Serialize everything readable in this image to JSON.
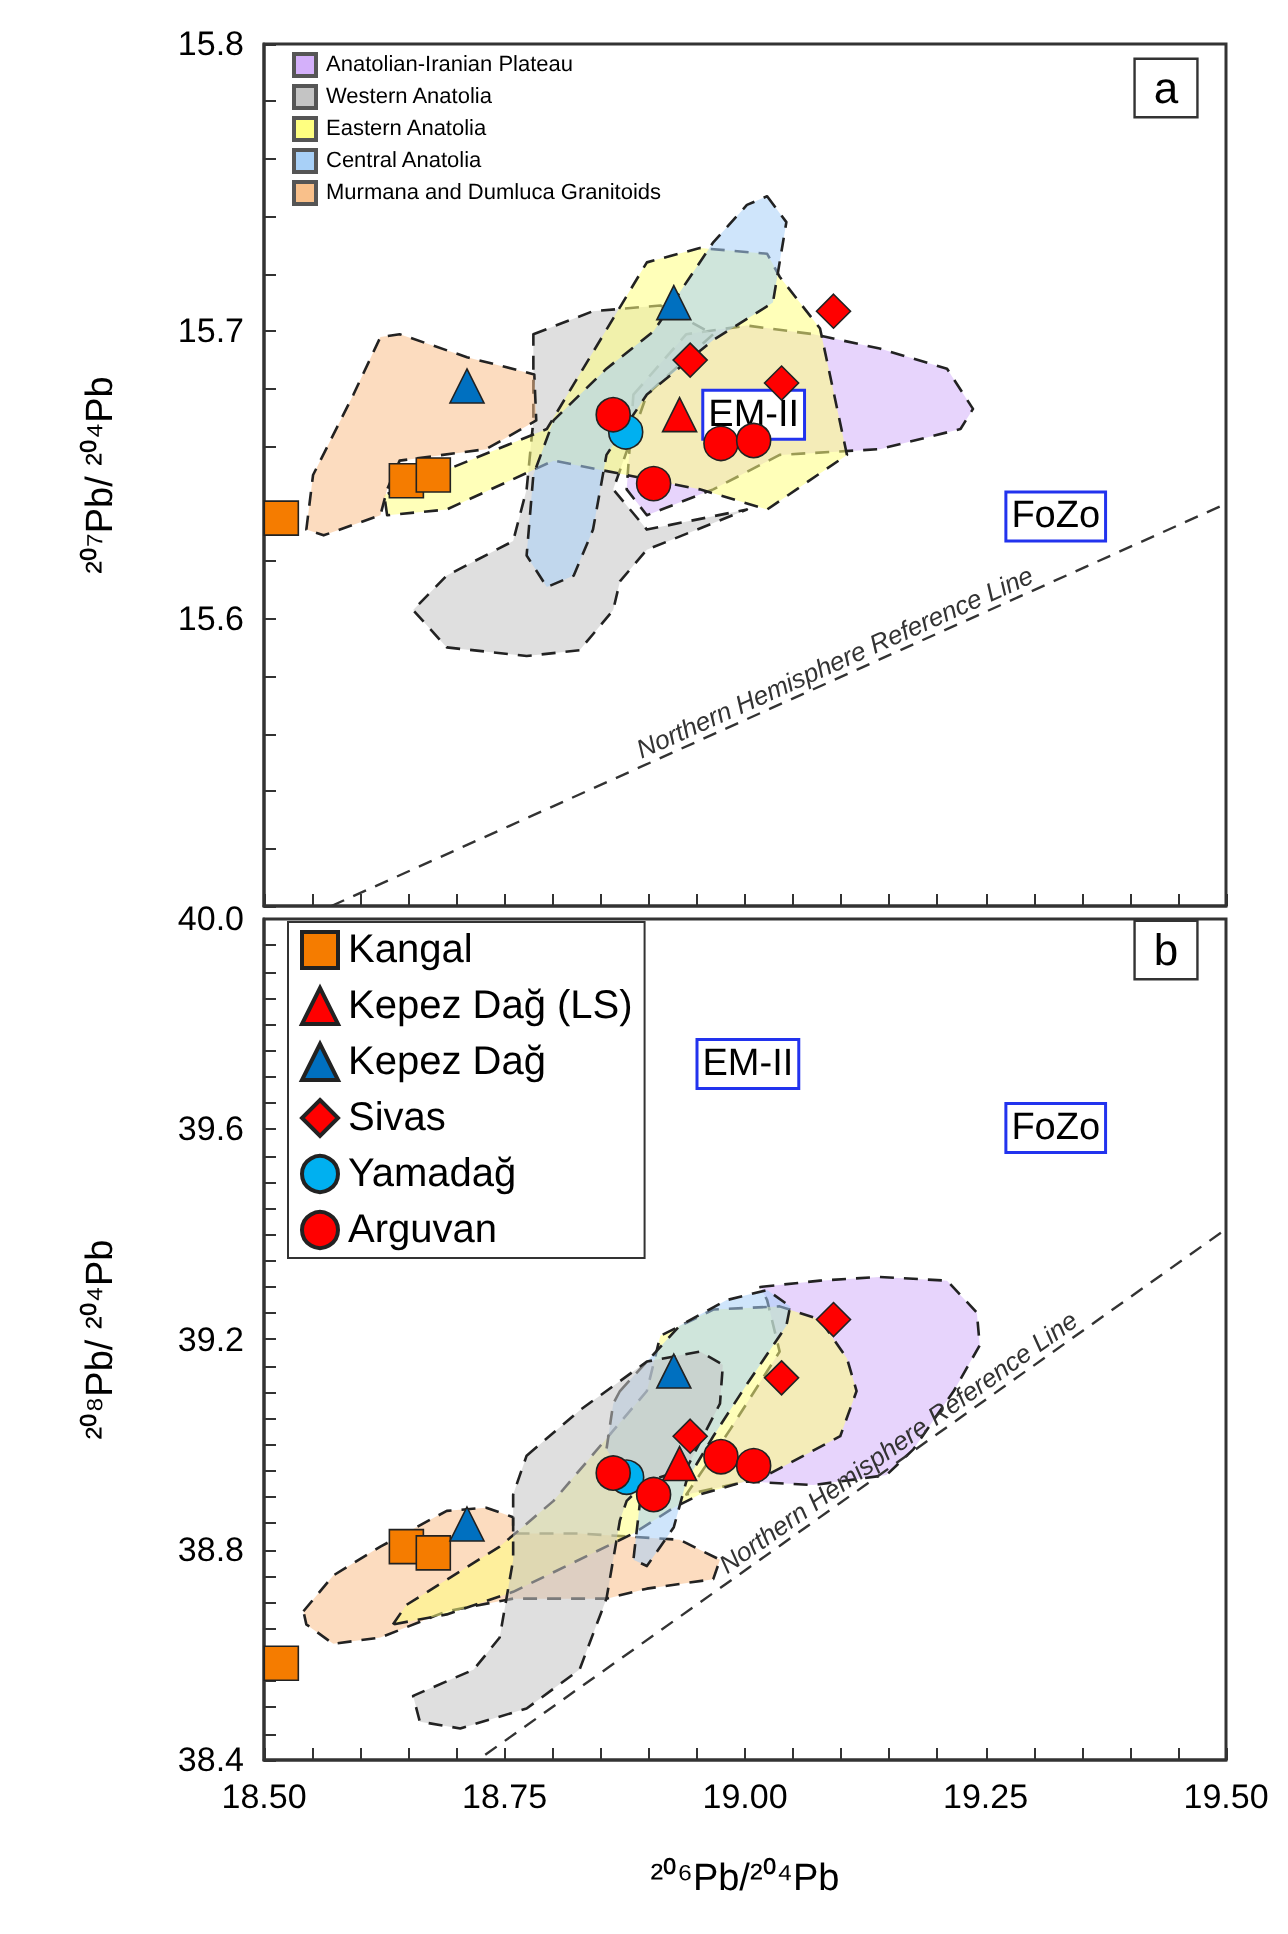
{
  "chart_data": [
    {
      "type": "scatter",
      "ylabel": "²⁰⁷Pb/ ²⁰⁴Pb",
      "xlim": [
        18.5,
        19.5
      ],
      "ylim": [
        15.5,
        15.8
      ],
      "tick_labels": "y",
      "legend": "top left",
      "grid": false,
      "xticks": [
        18.5,
        18.55,
        18.6,
        18.65,
        18.7,
        18.75,
        18.8,
        18.85,
        18.9,
        18.95,
        19,
        19.05,
        19.1,
        19.15,
        19.2,
        19.25,
        19.3,
        19.35,
        19.4,
        19.45,
        19.5
      ],
      "yticks": [
        {
          "value": 15.5,
          "label": null
        },
        {
          "value": 15.52,
          "label": null
        },
        {
          "value": 15.54,
          "label": null
        },
        {
          "value": 15.56,
          "label": null
        },
        {
          "value": 15.58,
          "label": null
        },
        15.6,
        {
          "value": 15.62,
          "label": null
        },
        {
          "value": 15.64,
          "label": null
        },
        {
          "value": 15.66,
          "label": null
        },
        {
          "value": 15.68,
          "label": null
        },
        15.7,
        {
          "value": 15.72,
          "label": null
        },
        {
          "value": 15.74,
          "label": null
        },
        {
          "value": 15.76,
          "label": null
        },
        {
          "value": 15.78,
          "label": null
        },
        15.8
      ],
      "annotations": [
        "a",
        "EM-II",
        "FoZo"
      ],
      "series": [
        {
          "type": "area",
          "name": "Anatolian-Iranian Plateau",
          "color": "#d4b0fa",
          "line_style": "dashed",
          "x": [
            18.884,
            18.939,
            19.002,
            19.071,
            19.14,
            19.21,
            19.237,
            19.224,
            19.14,
            19.036,
            18.967,
            18.898,
            18.877
          ],
          "values": [
            15.678,
            15.699,
            15.702,
            15.699,
            15.694,
            15.687,
            15.673,
            15.666,
            15.659,
            15.657,
            15.645,
            15.636,
            15.645
          ]
        },
        {
          "type": "area",
          "name": "Western Anatolia",
          "color": "#c4c4c4",
          "line_style": "dashed",
          "x": [
            18.78,
            18.842,
            18.912,
            18.967,
            18.898,
            18.863,
            18.898,
            19.002,
            18.898,
            18.87,
            18.863,
            18.828,
            18.773,
            18.69,
            18.655,
            18.69,
            18.759,
            18.773,
            18.78
          ],
          "values": [
            15.699,
            15.707,
            15.709,
            15.699,
            15.678,
            15.645,
            15.631,
            15.638,
            15.624,
            15.613,
            15.603,
            15.589,
            15.587,
            15.59,
            15.603,
            15.615,
            15.627,
            15.645,
            15.669
          ]
        },
        {
          "type": "area",
          "name": "Eastern Anatolia",
          "color": "#ffff80",
          "line_style": "dashed",
          "x": [
            18.628,
            18.625,
            18.794,
            18.898,
            18.953,
            19.023,
            19.036,
            19.078,
            19.106,
            19.023,
            18.953,
            18.801,
            18.69
          ],
          "values": [
            15.636,
            15.643,
            15.666,
            15.724,
            15.729,
            15.727,
            15.719,
            15.701,
            15.657,
            15.638,
            15.645,
            15.655,
            15.638
          ]
        },
        {
          "type": "area",
          "name": "Central Anatolia",
          "color": "#a8d0f7",
          "line_style": "dashed",
          "x": [
            19.023,
            19.043,
            19.029,
            18.967,
            18.898,
            18.856,
            18.842,
            18.822,
            18.794,
            18.773,
            18.78,
            18.801,
            18.856,
            18.905,
            18.967,
            19.002
          ],
          "values": [
            15.747,
            15.738,
            15.71,
            15.697,
            15.678,
            15.657,
            15.631,
            15.615,
            15.611,
            15.622,
            15.65,
            15.669,
            15.687,
            15.7,
            15.731,
            15.744
          ]
        },
        {
          "type": "area",
          "name": "Murmana and Dumluca Granitoids",
          "color": "#f9c08a",
          "line_style": "dashed",
          "x": [
            18.544,
            18.551,
            18.593,
            18.621,
            18.641,
            18.711,
            18.781,
            18.783,
            18.731,
            18.641,
            18.628,
            18.621,
            18.562
          ],
          "values": [
            15.631,
            15.65,
            15.678,
            15.698,
            15.699,
            15.691,
            15.685,
            15.669,
            15.659,
            15.655,
            15.645,
            15.636,
            15.629
          ]
        },
        {
          "type": "line",
          "name": "Northern Hemisphere Reference Line",
          "color": "#333333",
          "line_style": "dashed",
          "x": [
            18.57,
            19.5
          ],
          "values": [
            15.5,
            15.64
          ]
        },
        {
          "marker": "square",
          "color": "#f57c00",
          "x": [
            18.518,
            18.648,
            18.676
          ],
          "values": [
            15.635,
            15.648,
            15.65
          ]
        },
        {
          "marker": "triangle",
          "color": "#0070c0",
          "x": [
            18.711,
            18.926
          ],
          "values": [
            15.681,
            15.71
          ]
        },
        {
          "marker": "triangle",
          "color": "#ff0000",
          "x": [
            18.932
          ],
          "values": [
            15.671
          ]
        },
        {
          "marker": "diamond",
          "color": "#ff0000",
          "x": [
            18.943,
            19.038,
            19.092
          ],
          "values": [
            15.69,
            15.682,
            15.707
          ]
        },
        {
          "marker": "circle",
          "color": "#00b0f0",
          "x": [
            18.876
          ],
          "values": [
            15.665
          ]
        },
        {
          "marker": "circle",
          "color": "#ff0000",
          "x": [
            18.863,
            18.975,
            19.009,
            18.905
          ],
          "values": [
            15.671,
            15.661,
            15.662,
            15.647
          ]
        }
      ]
    },
    {
      "type": "scatter",
      "xlabel": "²⁰⁶Pb/²⁰⁴Pb",
      "ylabel": "²⁰⁸Pb/ ²⁰⁴Pb",
      "xlim": [
        18.5,
        19.5
      ],
      "ylim": [
        38.4,
        40.0
      ],
      "legend": "top left",
      "grid": false,
      "xticks": [
        {
          "value": 18.5,
          "label": "18.50"
        },
        {
          "value": 18.55,
          "label": null
        },
        {
          "value": 18.6,
          "label": null
        },
        {
          "value": 18.65,
          "label": null
        },
        {
          "value": 18.7,
          "label": null
        },
        {
          "value": 18.75,
          "label": "18.75"
        },
        {
          "value": 18.8,
          "label": null
        },
        {
          "value": 18.85,
          "label": null
        },
        {
          "value": 18.9,
          "label": null
        },
        {
          "value": 18.95,
          "label": null
        },
        {
          "value": 19,
          "label": "19.00"
        },
        {
          "value": 19.05,
          "label": null
        },
        {
          "value": 19.1,
          "label": null
        },
        {
          "value": 19.15,
          "label": null
        },
        {
          "value": 19.2,
          "label": null
        },
        {
          "value": 19.25,
          "label": "19.25"
        },
        {
          "value": 19.3,
          "label": null
        },
        {
          "value": 19.35,
          "label": null
        },
        {
          "value": 19.4,
          "label": null
        },
        {
          "value": 19.45,
          "label": null
        },
        {
          "value": 19.5,
          "label": "19.50"
        }
      ],
      "yticks": [
        38.4,
        {
          "value": 38.45,
          "label": null
        },
        {
          "value": 38.5,
          "label": null
        },
        {
          "value": 38.55,
          "label": null
        },
        {
          "value": 38.6,
          "label": null
        },
        {
          "value": 38.65,
          "label": null
        },
        {
          "value": 38.7,
          "label": null
        },
        {
          "value": 38.75,
          "label": null
        },
        38.8,
        {
          "value": 38.85,
          "label": null
        },
        {
          "value": 38.9,
          "label": null
        },
        {
          "value": 38.95,
          "label": null
        },
        {
          "value": 39.0,
          "label": null
        },
        {
          "value": 39.05,
          "label": null
        },
        {
          "value": 39.1,
          "label": null
        },
        {
          "value": 39.15,
          "label": null
        },
        39.2,
        {
          "value": 39.25,
          "label": null
        },
        {
          "value": 39.3,
          "label": null
        },
        {
          "value": 39.35,
          "label": null
        },
        {
          "value": 39.4,
          "label": null
        },
        {
          "value": 39.45,
          "label": null
        },
        {
          "value": 39.5,
          "label": null
        },
        {
          "value": 39.55,
          "label": null
        },
        39.6,
        {
          "value": 39.65,
          "label": null
        },
        {
          "value": 39.7,
          "label": null
        },
        {
          "value": 39.75,
          "label": null
        },
        {
          "value": 39.8,
          "label": null
        },
        {
          "value": 39.85,
          "label": null
        },
        {
          "value": 39.9,
          "label": null
        },
        {
          "value": 39.95,
          "label": null
        },
        {
          "value": 40,
          "label": "40.0"
        }
      ],
      "annotations": [
        "b",
        "EM-II",
        "FoZo"
      ],
      "series": [
        {
          "type": "area",
          "color": "#f9c08a",
          "line_style": "dashed",
          "x": [
            18.541,
            18.572,
            18.621,
            18.69,
            18.731,
            18.759,
            18.759,
            18.828,
            18.932,
            18.974,
            18.967,
            18.898,
            18.856,
            18.759,
            18.69,
            18.621,
            18.572,
            18.544
          ],
          "values": [
            38.683,
            38.751,
            38.806,
            38.874,
            38.88,
            38.862,
            38.831,
            38.831,
            38.819,
            38.781,
            38.744,
            38.726,
            38.707,
            38.707,
            38.683,
            38.633,
            38.621,
            38.658
          ]
        },
        {
          "type": "area",
          "color": "#d4b0fa",
          "line_style": "dashed",
          "x": [
            19.016,
            19.078,
            19.14,
            19.21,
            19.241,
            19.244,
            19.217,
            19.175,
            19.147,
            19.071,
            19.002,
            18.939,
            18.985,
            19.036,
            19.023
          ],
          "values": [
            39.3,
            39.312,
            39.319,
            39.312,
            39.251,
            39.189,
            39.102,
            38.991,
            38.942,
            38.923,
            38.93,
            38.905,
            39.03,
            39.177,
            39.275
          ]
        },
        {
          "type": "area",
          "color": "#ffff80",
          "line_style": "dashed",
          "x": [
            18.634,
            18.648,
            18.745,
            18.801,
            18.898,
            18.912,
            18.967,
            19.036,
            19.078,
            19.106,
            19.116,
            19.099,
            19.023,
            18.953,
            18.926,
            18.884,
            18.759,
            18.69
          ],
          "values": [
            38.658,
            38.695,
            38.806,
            38.893,
            39.102,
            39.207,
            39.257,
            39.263,
            39.238,
            39.164,
            39.102,
            39.016,
            38.942,
            38.905,
            38.88,
            38.831,
            38.72,
            38.677
          ]
        },
        {
          "type": "area",
          "color": "#a8d0f7",
          "line_style": "dashed",
          "x": [
            18.87,
            18.932,
            18.981,
            19.023,
            19.047,
            19.043,
            19.002,
            18.967,
            18.939,
            18.926,
            18.898,
            18.884,
            18.891,
            18.856,
            18.863
          ],
          "values": [
            39.102,
            39.226,
            39.275,
            39.294,
            39.263,
            39.226,
            39.115,
            39.016,
            38.93,
            38.843,
            38.769,
            38.781,
            38.893,
            38.991,
            39.078
          ]
        },
        {
          "type": "area",
          "color": "#c4c4c4",
          "line_style": "dashed",
          "x": [
            18.773,
            18.828,
            18.898,
            18.953,
            18.977,
            18.974,
            18.939,
            18.898,
            18.877,
            18.87,
            18.856,
            18.828,
            18.773,
            18.704,
            18.662,
            18.655,
            18.718,
            18.745,
            18.759,
            18.759
          ],
          "values": [
            38.979,
            39.065,
            39.158,
            39.177,
            39.152,
            39.078,
            38.954,
            38.93,
            38.893,
            38.856,
            38.707,
            38.572,
            38.498,
            38.46,
            38.473,
            38.522,
            38.572,
            38.633,
            38.781,
            38.905
          ]
        },
        {
          "type": "line",
          "name": "Northern Hemisphere Reference Line",
          "color": "#333333",
          "line_style": "dashed",
          "x": [
            18.73,
            19.5
          ],
          "values": [
            38.41,
            39.41
          ]
        },
        {
          "name": "Kangal",
          "marker": "square",
          "color": "#f57c00",
          "x": [
            18.518,
            18.648,
            18.676
          ],
          "values": [
            38.584,
            38.806,
            38.794
          ]
        },
        {
          "name": "Kepez Dağ (LS)",
          "marker": "triangle",
          "color": "#ff0000",
          "x": [
            18.932
          ],
          "values": [
            38.964
          ]
        },
        {
          "name": "Kepez Dağ",
          "marker": "triangle",
          "color": "#0070c0",
          "x": [
            18.711,
            18.926
          ],
          "values": [
            38.849,
            39.14
          ]
        },
        {
          "name": "Sivas",
          "marker": "diamond",
          "color": "#ff0000",
          "x": [
            19.092,
            19.038,
            18.943
          ],
          "values": [
            39.238,
            39.127,
            39.016
          ]
        },
        {
          "name": "Yamadağ",
          "marker": "circle",
          "color": "#00b0f0",
          "x": [
            18.877
          ],
          "values": [
            38.938
          ]
        },
        {
          "name": "Arguvan",
          "marker": "circle",
          "color": "#ff0000",
          "x": [
            18.863,
            18.975,
            19.009,
            18.905
          ],
          "values": [
            38.946,
            38.977,
            38.96,
            38.905
          ]
        }
      ]
    }
  ]
}
